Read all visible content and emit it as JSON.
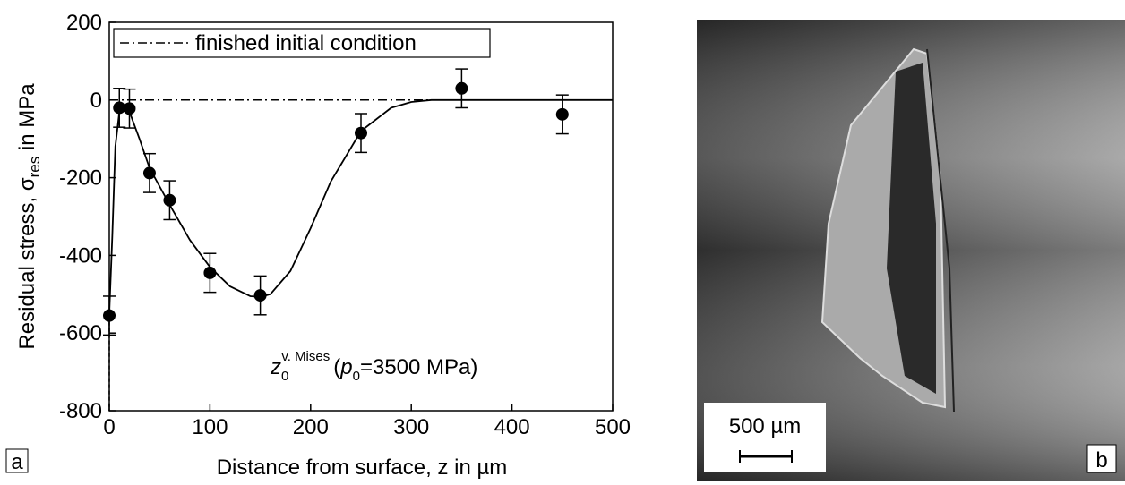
{
  "chart_data": {
    "type": "scatter",
    "panel_label": "a",
    "xlabel": "Distance from surface, z in µm",
    "ylabel_parts": [
      "Residual stress, σ",
      "res",
      " in MPa"
    ],
    "xlim": [
      0,
      500
    ],
    "xticks": [
      0,
      100,
      200,
      300,
      400,
      500
    ],
    "ylim": [
      -800,
      200
    ],
    "yticks": [
      -800,
      -600,
      -400,
      -200,
      0,
      200
    ],
    "points": {
      "x": [
        0,
        10,
        20,
        40,
        60,
        100,
        150,
        250,
        350,
        450
      ],
      "values": [
        -555,
        -20,
        -22,
        -188,
        -258,
        -445,
        -503,
        -85,
        30,
        -37
      ],
      "errors": [
        50,
        50,
        50,
        50,
        50,
        50,
        50,
        50,
        50,
        50
      ],
      "color": "#000000"
    },
    "fit": {
      "x": [
        0,
        3,
        6,
        10,
        15,
        20,
        30,
        40,
        60,
        80,
        100,
        120,
        140,
        150,
        160,
        180,
        200,
        220,
        250,
        280,
        300,
        320,
        350,
        400,
        500
      ],
      "values": [
        -550,
        -350,
        -120,
        -30,
        -15,
        -30,
        -100,
        -175,
        -270,
        -360,
        -430,
        -480,
        -505,
        -507,
        -500,
        -440,
        -330,
        -210,
        -80,
        -20,
        -5,
        0,
        0,
        0,
        0
      ],
      "color": "#000000"
    },
    "reference": {
      "name": "finished initial condition",
      "x": [
        0,
        500
      ],
      "values": [
        0,
        0
      ],
      "color": "#000000"
    },
    "annotation_parts": [
      "z",
      "0",
      "v. Mises",
      "(",
      "p",
      "0",
      "=3500 MPa)"
    ],
    "legend": "top-left"
  },
  "image": {
    "scale_bar": "500 µm",
    "label": "b"
  }
}
